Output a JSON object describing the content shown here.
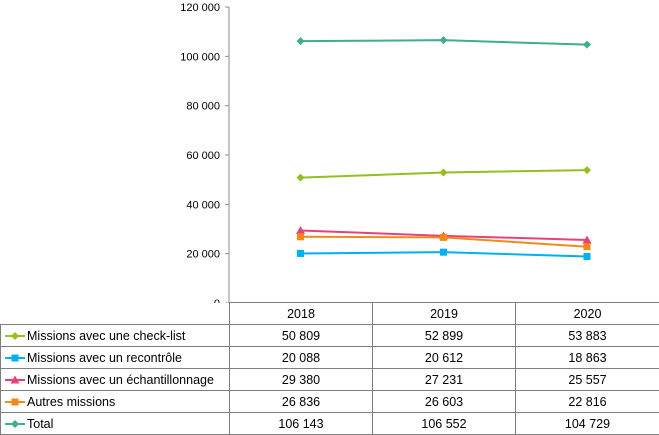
{
  "chart_data": {
    "type": "line",
    "categories": [
      "2018",
      "2019",
      "2020"
    ],
    "ylim": [
      0,
      120000
    ],
    "yticks": [
      0,
      20000,
      40000,
      60000,
      80000,
      100000,
      120000
    ],
    "ytick_labels": [
      "0",
      "20 000",
      "40 000",
      "60 000",
      "80 000",
      "100 000",
      "120 000"
    ],
    "gridlines": false,
    "legend": "data-table-below",
    "series": [
      {
        "name": "Missions avec une check-list",
        "color": "#92c01f",
        "marker": "diamond",
        "values": [
          50809,
          52899,
          53883
        ],
        "labels": [
          "50 809",
          "52 899",
          "53 883"
        ]
      },
      {
        "name": "Missions avec un recontrôle",
        "color": "#00b0f0",
        "marker": "square",
        "values": [
          20088,
          20612,
          18863
        ],
        "labels": [
          "20 088",
          "20 612",
          "18 863"
        ]
      },
      {
        "name": "Missions avec un échantillonnage",
        "color": "#e8407a",
        "marker": "triangle",
        "values": [
          29380,
          27231,
          25557
        ],
        "labels": [
          "29 380",
          "27 231",
          "25 557"
        ]
      },
      {
        "name": "Autres missions",
        "color": "#f28a1b",
        "marker": "square",
        "values": [
          26836,
          26603,
          22816
        ],
        "labels": [
          "26 836",
          "26 603",
          "22 816"
        ]
      },
      {
        "name": "Total",
        "color": "#3cb08e",
        "marker": "diamond",
        "values": [
          106143,
          106552,
          104729
        ],
        "labels": [
          "106 143",
          "106 552",
          "104 729"
        ]
      }
    ]
  }
}
